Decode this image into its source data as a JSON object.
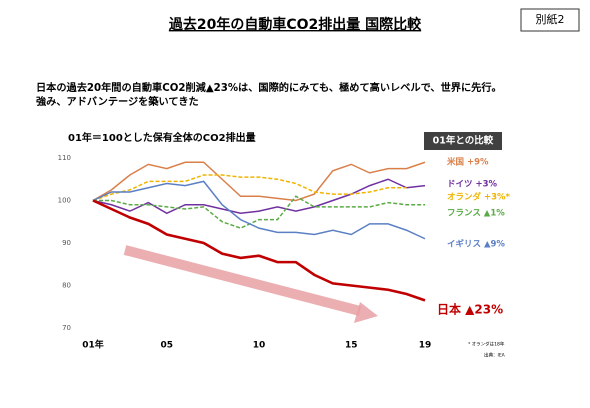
{
  "header": {
    "title": "過去20年の自動車CO2排出量 国際比較",
    "badge": "別紙2"
  },
  "lead": [
    "日本の過去20年間の自動車CO2削減▲23%は、国際的にみても、極めて高いレベルで、世界に先行。",
    "強み、アドバンテージを築いてきた"
  ],
  "chart_data": {
    "type": "line",
    "title": "01年＝100とした保有全体のCO2排出量",
    "legend_title": "01年との比較",
    "categories": [
      "01年",
      null,
      null,
      null,
      "05",
      null,
      null,
      null,
      null,
      "10",
      null,
      null,
      null,
      null,
      "15",
      null,
      null,
      null,
      "19"
    ],
    "ylim": [
      70,
      110
    ],
    "yticks": [
      70,
      80,
      90,
      100,
      110
    ],
    "series": [
      {
        "name": "米国 +9%",
        "color": "#d9804a",
        "dash": false,
        "values": [
          100,
          102.5,
          106,
          108.5,
          107.5,
          109,
          109,
          105,
          101,
          101,
          100.5,
          100,
          101.5,
          107,
          108.5,
          106.5,
          107.5,
          107.5,
          109
        ]
      },
      {
        "name": "ドイツ +3%",
        "color": "#7030a0",
        "dash": false,
        "values": [
          100,
          99,
          97.5,
          99.5,
          97,
          99,
          99,
          98,
          97,
          97.5,
          98.5,
          97.5,
          98.5,
          100,
          101.5,
          103.5,
          105,
          103,
          103.5
        ]
      },
      {
        "name": "オランダ +3%*",
        "color": "#f0b400",
        "dash": true,
        "values": [
          100,
          101.5,
          102.5,
          104.5,
          104.5,
          104.5,
          106,
          106,
          105.5,
          105.5,
          105,
          104,
          102,
          101.5,
          101.5,
          102,
          103,
          103,
          null
        ]
      },
      {
        "name": "フランス ▲1%",
        "color": "#5aaa46",
        "dash": true,
        "values": [
          100,
          100,
          99,
          99,
          98.5,
          98,
          98.5,
          95,
          93.5,
          95.5,
          95.5,
          101,
          98.5,
          98.5,
          98.5,
          98.5,
          99.5,
          99,
          99
        ]
      },
      {
        "name": "イギリス ▲9%",
        "color": "#5b7fc4",
        "dash": false,
        "values": [
          100,
          102,
          102,
          103,
          104,
          103.5,
          104.5,
          99,
          95.5,
          93.5,
          92.5,
          92.5,
          92,
          93,
          92,
          94.5,
          94.5,
          93,
          91
        ]
      },
      {
        "name": "日本 ▲23%",
        "color": "#c00000",
        "dash": false,
        "values": [
          100,
          98,
          96,
          94.5,
          92,
          91,
          90,
          87.5,
          86.5,
          87,
          85.5,
          85.5,
          82.5,
          80.5,
          80,
          79.5,
          79,
          78,
          76.5
        ]
      }
    ],
    "notes": [
      "* オランダは18年",
      "出典：IEA"
    ]
  }
}
